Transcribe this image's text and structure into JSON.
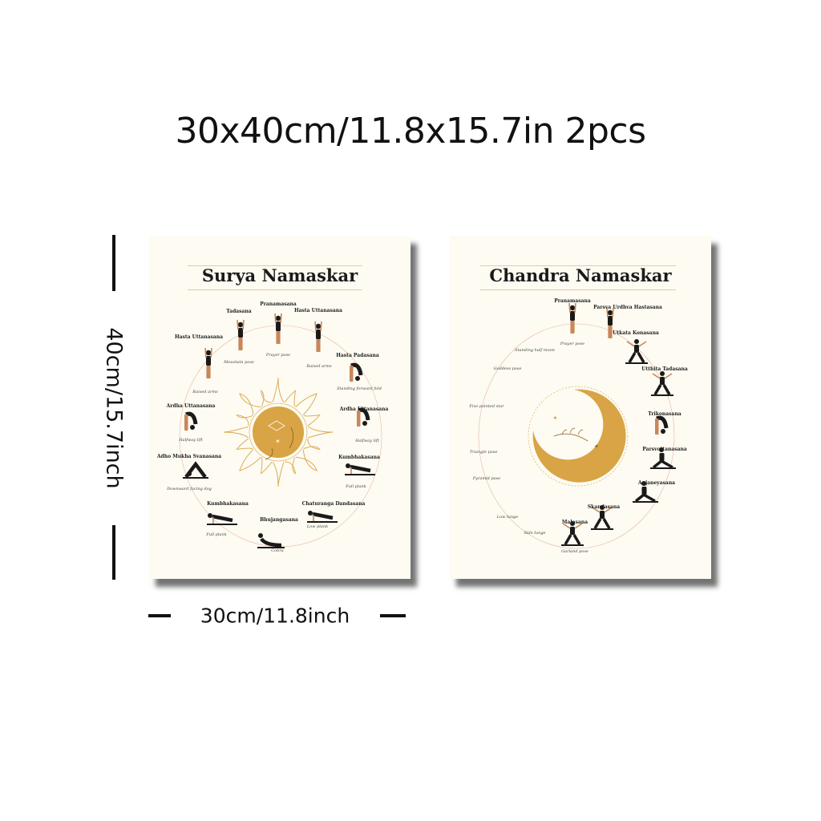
{
  "header": {
    "size_text": "30x40cm/11.8x15.7in 2pcs"
  },
  "dimensions": {
    "height_label": "40cm/15.7inch",
    "width_label": "30cm/11.8inch"
  },
  "colors": {
    "accent": "#d9a445",
    "poster_bg": "#fdfbf2",
    "figure": "#1a1a1a",
    "skin": "#c8875a"
  },
  "surya": {
    "title": "Surya Namaskar",
    "art": "sun-icon",
    "poses": [
      {
        "name": "Pranamasana",
        "caption": "Prayer pose"
      },
      {
        "name": "Hasta Uttanasana",
        "caption": "Raised arms"
      },
      {
        "name": "Hasta Padasana",
        "caption": "Standing forward fold"
      },
      {
        "name": "Ardha Uttanasana",
        "caption": "Halfway lift"
      },
      {
        "name": "Kumbhakasana",
        "caption": "Full plank"
      },
      {
        "name": "Chaturanga Dandasana",
        "caption": "Low plank"
      },
      {
        "name": "Bhujangasana",
        "caption": "Cobra"
      },
      {
        "name": "Kumbhakasana",
        "caption": "Full plank"
      },
      {
        "name": "Adho Mukha Svanasana",
        "caption": "Downward facing dog"
      },
      {
        "name": "Ardha Uttanasana",
        "caption": "Halfway lift"
      },
      {
        "name": "Hasta Uttanasana",
        "caption": "Raised arms"
      },
      {
        "name": "Tadasana",
        "caption": "Mountain pose"
      }
    ]
  },
  "chandra": {
    "title": "Chandra Namaskar",
    "art": "crescent-moon-icon",
    "poses": [
      {
        "name": "Pranamasana",
        "caption": "Prayer pose"
      },
      {
        "name": "Parsva Urdhva Hastasana",
        "caption": "Standing half moon"
      },
      {
        "name": "Utkata Konasana",
        "caption": "Goddess pose"
      },
      {
        "name": "Utthita Tadasana",
        "caption": "Five pointed star"
      },
      {
        "name": "Trikonasana",
        "caption": "Triangle pose"
      },
      {
        "name": "Parsvottanasana",
        "caption": "Pyramid pose"
      },
      {
        "name": "Anjaneyasana",
        "caption": "Low lunge"
      },
      {
        "name": "Skandasana",
        "caption": "Side lunge"
      },
      {
        "name": "Malasana",
        "caption": "Garland pose"
      }
    ]
  }
}
